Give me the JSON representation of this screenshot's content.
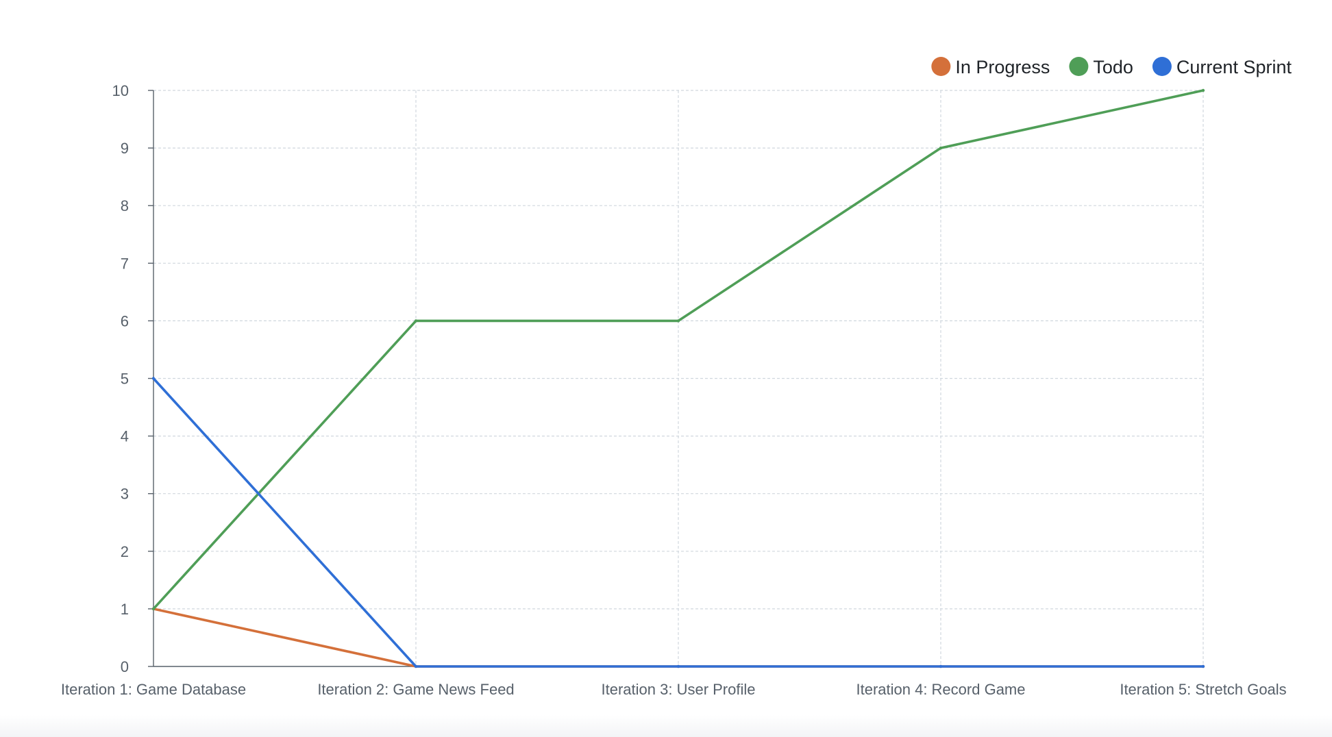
{
  "chart_data": {
    "type": "line",
    "title": "",
    "xlabel": "",
    "ylabel": "",
    "categories": [
      "Iteration 1: Game Database",
      "Iteration 2: Game News Feed",
      "Iteration 3: User Profile",
      "Iteration 4: Record Game",
      "Iteration 5: Stretch Goals"
    ],
    "ylim": [
      0,
      10
    ],
    "yticks": [
      "0",
      "1",
      "2",
      "3",
      "4",
      "5",
      "6",
      "7",
      "8",
      "9",
      "10"
    ],
    "grid": true,
    "legend_position": "top-right",
    "series": [
      {
        "name": "In Progress",
        "color": "#d4703a",
        "values": [
          1,
          0,
          0,
          0,
          0
        ]
      },
      {
        "name": "Todo",
        "color": "#4f9e57",
        "values": [
          1,
          6,
          6,
          9,
          10
        ]
      },
      {
        "name": "Current Sprint",
        "color": "#2f6fd6",
        "values": [
          5,
          0,
          0,
          0,
          0
        ]
      }
    ],
    "colors": {
      "grid": "#d0d7de",
      "axis": "#57606a",
      "tick_text": "#57606a",
      "legend_text": "#1f2328"
    }
  }
}
